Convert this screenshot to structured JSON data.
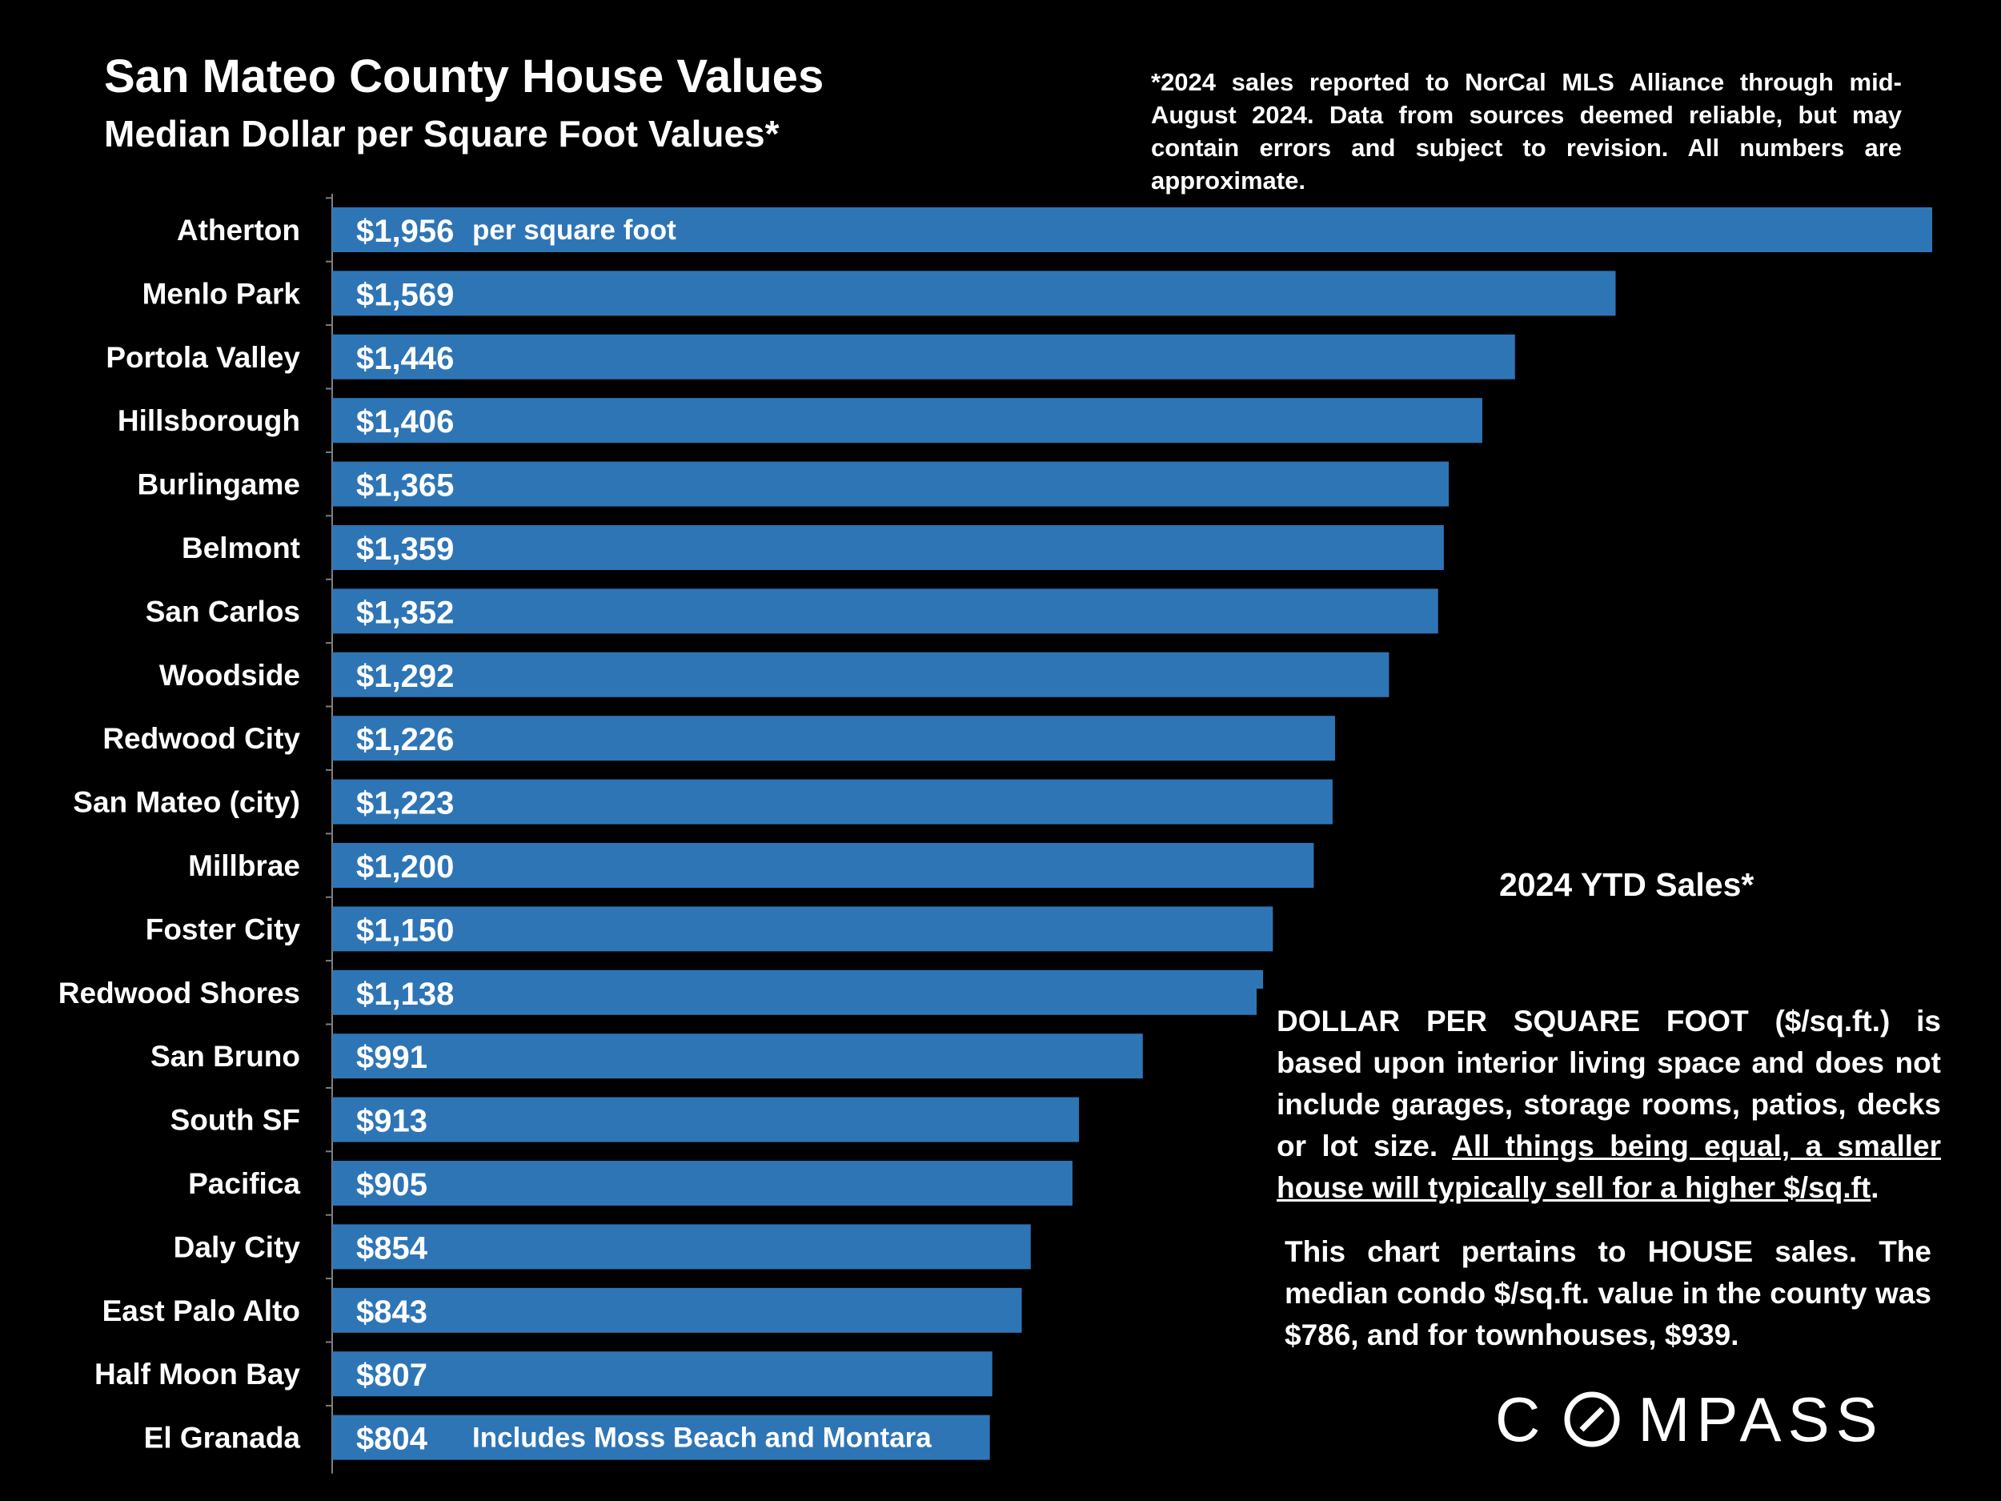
{
  "header": {
    "title": "San Mateo County House Values",
    "subtitle": "Median Dollar per Square Foot Values*",
    "footnote": "*2024 sales reported to NorCal MLS Alliance through mid-August 2024. Data from sources deemed reliable, but may contain errors and subject to revision. All numbers are approximate."
  },
  "chart_data": {
    "type": "bar",
    "orientation": "horizontal",
    "categories": [
      "Atherton",
      "Menlo Park",
      "Portola Valley",
      "Hillsborough",
      "Burlingame",
      "Belmont",
      "San Carlos",
      "Woodside",
      "Redwood City",
      "San Mateo (city)",
      "Millbrae",
      "Foster City",
      "Redwood Shores",
      "San Bruno",
      "South SF",
      "Pacifica",
      "Daly City",
      "East Palo Alto",
      "Half Moon Bay",
      "El Granada"
    ],
    "values": [
      1956,
      1569,
      1446,
      1406,
      1365,
      1359,
      1352,
      1292,
      1226,
      1223,
      1200,
      1150,
      1138,
      991,
      913,
      905,
      854,
      843,
      807,
      804
    ],
    "data_labels": [
      "$1,956",
      "$1,569",
      "$1,446",
      "$1,406",
      "$1,365",
      "$1,359",
      "$1,352",
      "$1,292",
      "$1,226",
      "$1,223",
      "$1,200",
      "$1,150",
      "$1,138",
      "$991",
      "$913",
      "$905",
      "$854",
      "$843",
      "$807",
      "$804"
    ],
    "annotations": {
      "Atherton": "per square foot",
      "El Granada": "Includes Moss Beach and Montara"
    },
    "xlim": [
      0,
      1956
    ],
    "bar_color": "#2E75B6",
    "grid": false,
    "legend": "none"
  },
  "side_text": {
    "ytd_label": "2024 YTD Sales*",
    "note1_plain": "DOLLAR PER SQUARE FOOT ($/sq.ft.) is based upon interior living space and does not include garages, storage rooms, patios, decks or lot size. ",
    "note1_underlined": "All things being equal, a smaller house will typically  sell for a higher $/sq.ft",
    "note1_end": ".",
    "note2": "This chart pertains to HOUSE sales. The median condo $/sq.ft. value in the county was $786, and for townhouses, $939."
  },
  "brand": {
    "logo_text_left": "C",
    "logo_text_right": "MPASS"
  }
}
